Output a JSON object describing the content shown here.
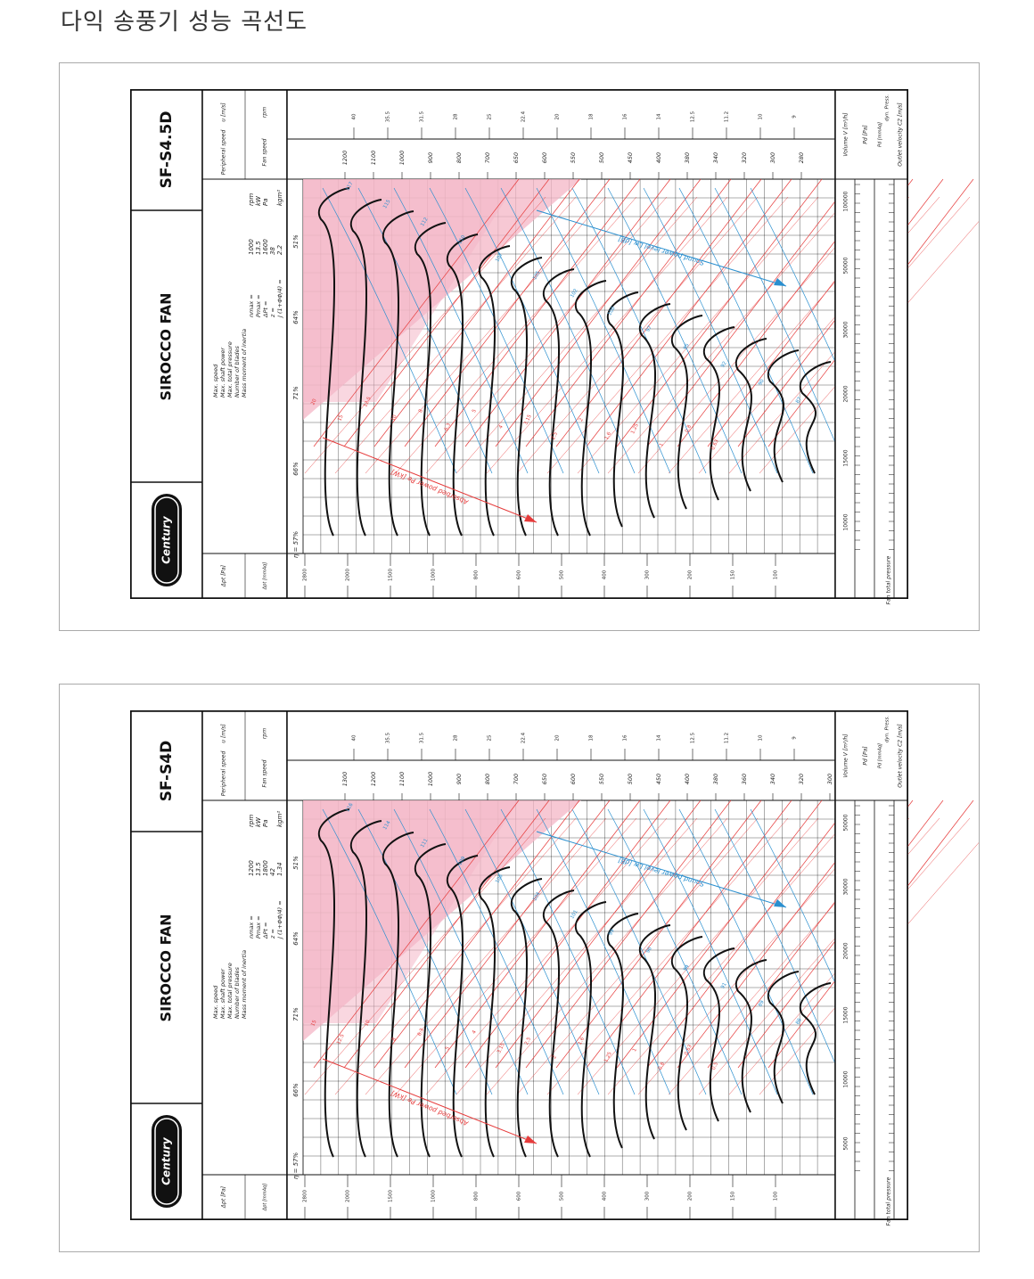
{
  "page": {
    "title": "다익 송풍기 성능 곡선도"
  },
  "charts": [
    {
      "model": "SF-S4.5D",
      "product": "SIROCCO FAN",
      "brand": "Century",
      "specs": {
        "labels": [
          "Max. speed",
          "Max. shaft power",
          "Max. total pressure",
          "Number of blades",
          "Mass moment of inertia"
        ],
        "symbols": [
          "nmax =",
          "Pmax =",
          "ΔPt =",
          "z =",
          "J (1+ΦΦ/4) ="
        ],
        "values": [
          "1000",
          "13.5",
          "1600",
          "38",
          "2.2"
        ],
        "units": [
          "rpm",
          "kW",
          "Pa",
          "",
          "kgm²"
        ]
      },
      "efficiency_labels": [
        "η = 57%",
        "66%",
        "71%",
        "64%",
        "51%"
      ],
      "header_labels": {
        "peripheral_speed": "Peripheral speed",
        "u_unit": "u [m/s]",
        "fan_speed": "Fan speed",
        "rpm": "rpm"
      },
      "axis_labels": {
        "pressure": "Fan total pressure",
        "dp_pa": "Δpt [Pa]",
        "dp_mmaq": "Δpt [mmAq]",
        "volume": "Volume V [m³/h]",
        "pd_pa": "Pd [Pa]",
        "pd_mmaq": "Pd [mmAq]",
        "dyn": "dyn. Press.",
        "outlet": "Outlet velocity C2 [m/s]"
      },
      "rpm_values": [
        "1200",
        "1100",
        "1000",
        "900",
        "800",
        "700",
        "650",
        "600",
        "550",
        "500",
        "450",
        "400",
        "380",
        "340",
        "320",
        "300",
        "280"
      ],
      "u_values": [
        "40",
        "35.5",
        "31.5",
        "28",
        "25",
        "22.4",
        "20",
        "18",
        "16",
        "14",
        "12.5",
        "11.2",
        "10",
        "9"
      ],
      "pressure_pa": [
        "2800",
        "2000",
        "1500",
        "1000",
        "800",
        "600",
        "500",
        "400",
        "300",
        "200",
        "150",
        "100"
      ],
      "volume_values": [
        "100000",
        "50000",
        "30000",
        "20000",
        "15000",
        "10000"
      ],
      "sound_label": "Sound power level Lw [dB]",
      "power_label": "Absorbed power Pe [kW]",
      "sound_values": [
        "117",
        "115",
        "112",
        "110",
        "107",
        "105",
        "102",
        "100",
        "97",
        "95",
        "92",
        "90",
        "87"
      ],
      "power_values": [
        "20",
        "15",
        "12.5",
        "10",
        "8",
        "6.3",
        "5",
        "4",
        "3.15",
        "2.5",
        "2",
        "1.6",
        "1.25",
        "1",
        "0.8",
        "0.63"
      ],
      "colors": {
        "shade": "#f4b6c6",
        "red": "#e63b3b",
        "blue": "#2a8fcf",
        "black": "#111111"
      }
    },
    {
      "model": "SF-S4D",
      "product": "SIROCCO FAN",
      "brand": "Century",
      "specs": {
        "labels": [
          "Max. speed",
          "Max. shaft power",
          "Max. total pressure",
          "Number of blades",
          "Mass moment of inertia"
        ],
        "symbols": [
          "nmax =",
          "Pmax =",
          "ΔPt =",
          "z =",
          "J (1+ΦΦ/4) ="
        ],
        "values": [
          "1200",
          "13.5",
          "1800",
          "42",
          "1.34"
        ],
        "units": [
          "rpm",
          "kW",
          "Pa",
          "",
          "kgm²"
        ]
      },
      "efficiency_labels": [
        "η = 57%",
        "66%",
        "71%",
        "64%",
        "51%"
      ],
      "header_labels": {
        "peripheral_speed": "Peripheral speed",
        "u_unit": "u [m/s]",
        "fan_speed": "Fan speed",
        "rpm": "rpm"
      },
      "axis_labels": {
        "pressure": "Fan total pressure",
        "dp_pa": "Δpt [Pa]",
        "dp_mmaq": "Δpt [mmAq]",
        "volume": "Volume V [m³/h]",
        "pd_pa": "Pd [Pa]",
        "pd_mmaq": "Pd [mmAq]",
        "dyn": "dyn. Press.",
        "outlet": "Outlet velocity C2 [m/s]"
      },
      "rpm_values": [
        "1300",
        "1200",
        "1100",
        "1000",
        "900",
        "800",
        "700",
        "650",
        "600",
        "550",
        "500",
        "450",
        "400",
        "380",
        "360",
        "340",
        "320",
        "300"
      ],
      "u_values": [
        "40",
        "35.5",
        "31.5",
        "28",
        "25",
        "22.4",
        "20",
        "18",
        "16",
        "14",
        "12.5",
        "11.2",
        "10",
        "9"
      ],
      "pressure_pa": [
        "2800",
        "2000",
        "1500",
        "1000",
        "800",
        "600",
        "500",
        "400",
        "300",
        "200",
        "150",
        "100"
      ],
      "volume_values": [
        "50000",
        "30000",
        "20000",
        "15000",
        "10000",
        "5000"
      ],
      "sound_label": "Sound power level Lw [dB]",
      "power_label": "Absorbed power Pe [kW]",
      "sound_values": [
        "116",
        "114",
        "111",
        "109",
        "106",
        "104",
        "101",
        "99",
        "96",
        "94",
        "91",
        "89",
        "86"
      ],
      "power_values": [
        "15",
        "12.5",
        "10",
        "8",
        "6.3",
        "5",
        "4",
        "3.15",
        "2.5",
        "2",
        "1.6",
        "1.25",
        "1",
        "0.8",
        "0.63",
        "0.5"
      ],
      "colors": {
        "shade": "#f4b6c6",
        "red": "#e63b3b",
        "blue": "#2a8fcf",
        "black": "#111111"
      }
    }
  ]
}
